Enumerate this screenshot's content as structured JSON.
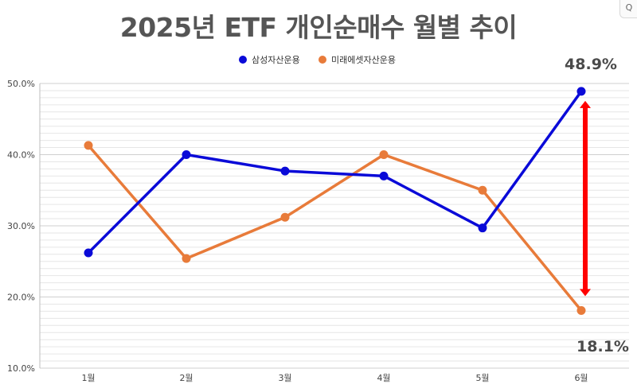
{
  "chart_data": {
    "type": "line",
    "title": "2025년 ETF 개인순매수 월별 추이",
    "categories": [
      "1월",
      "2월",
      "3월",
      "4월",
      "5월",
      "6월"
    ],
    "series": [
      {
        "name": "삼성자산운용",
        "color": "#0a0ad8",
        "values": [
          26.2,
          40.0,
          37.7,
          37.0,
          29.7,
          48.9
        ]
      },
      {
        "name": "미래에셋자산운용",
        "color": "#e87b3a",
        "values": [
          41.3,
          25.4,
          31.2,
          40.0,
          35.0,
          18.1
        ]
      }
    ],
    "y_ticks": [
      "10.0%",
      "20.0%",
      "30.0%",
      "40.0%",
      "50.0%"
    ],
    "ylim": [
      10,
      50
    ],
    "legend_position": "top",
    "grid": true,
    "annotations": [
      {
        "text": "48.9%",
        "series": 0,
        "index": 5
      },
      {
        "text": "18.1%",
        "series": 1,
        "index": 5
      }
    ],
    "arrow": {
      "color": "#ff0000",
      "from": 48.9,
      "to": 18.1,
      "index": 5
    }
  },
  "corner_icon": "search-icon",
  "corner_glyph": "Q"
}
